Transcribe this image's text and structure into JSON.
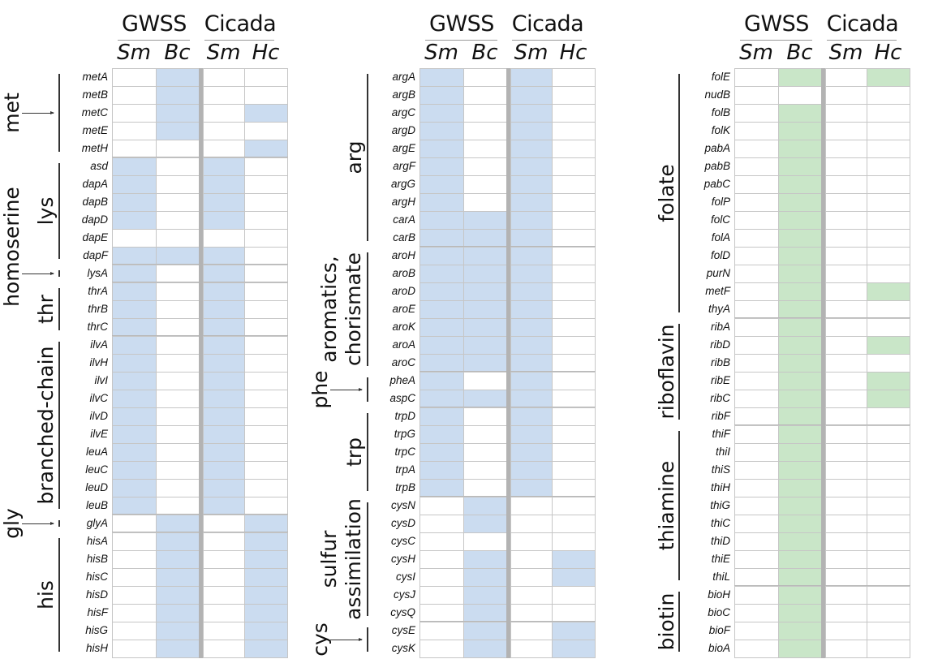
{
  "colors": {
    "blue": "#cbdcf0",
    "green": "#c9e6c8",
    "empty": "#ffffff"
  },
  "headers": {
    "group1": "GWSS",
    "group2": "Cicada",
    "columns": [
      "Sm",
      "Bc",
      "Sm",
      "Hc"
    ]
  },
  "panels": [
    {
      "fill": "blue",
      "groups": [
        {
          "genes": [
            [
              "metA",
              [
                0,
                1,
                0,
                0
              ]
            ],
            [
              "metB",
              [
                0,
                1,
                0,
                0
              ]
            ],
            [
              "metC",
              [
                0,
                1,
                0,
                1
              ]
            ],
            [
              "metE",
              [
                0,
                1,
                0,
                0
              ]
            ],
            [
              "metH",
              [
                0,
                0,
                0,
                1
              ]
            ]
          ]
        },
        {
          "genes": [
            [
              "asd",
              [
                1,
                0,
                1,
                0
              ]
            ],
            [
              "dapA",
              [
                1,
                0,
                1,
                0
              ]
            ],
            [
              "dapB",
              [
                1,
                0,
                1,
                0
              ]
            ],
            [
              "dapD",
              [
                1,
                0,
                1,
                0
              ]
            ],
            [
              "dapE",
              [
                0,
                0,
                0,
                0
              ]
            ],
            [
              "dapF",
              [
                1,
                1,
                1,
                0
              ]
            ]
          ]
        },
        {
          "genes": [
            [
              "lysA",
              [
                1,
                0,
                1,
                0
              ]
            ]
          ]
        },
        {
          "genes": [
            [
              "thrA",
              [
                1,
                0,
                1,
                0
              ]
            ],
            [
              "thrB",
              [
                1,
                0,
                1,
                0
              ]
            ],
            [
              "thrC",
              [
                1,
                0,
                1,
                0
              ]
            ]
          ]
        },
        {
          "genes": [
            [
              "ilvA",
              [
                1,
                0,
                1,
                0
              ]
            ],
            [
              "ilvH",
              [
                1,
                0,
                1,
                0
              ]
            ],
            [
              "ilvI",
              [
                1,
                0,
                1,
                0
              ]
            ],
            [
              "ilvC",
              [
                1,
                0,
                1,
                0
              ]
            ],
            [
              "ilvD",
              [
                1,
                0,
                1,
                0
              ]
            ],
            [
              "ilvE",
              [
                1,
                0,
                1,
                0
              ]
            ],
            [
              "leuA",
              [
                1,
                0,
                1,
                0
              ]
            ],
            [
              "leuC",
              [
                1,
                0,
                1,
                0
              ]
            ],
            [
              "leuD",
              [
                1,
                0,
                1,
                0
              ]
            ],
            [
              "leuB",
              [
                1,
                0,
                1,
                0
              ]
            ]
          ]
        },
        {
          "genes": [
            [
              "glyA",
              [
                0,
                1,
                0,
                1
              ]
            ]
          ]
        },
        {
          "genes": [
            [
              "hisA",
              [
                0,
                1,
                0,
                1
              ]
            ],
            [
              "hisB",
              [
                0,
                1,
                0,
                1
              ]
            ],
            [
              "hisC",
              [
                0,
                1,
                0,
                1
              ]
            ],
            [
              "hisD",
              [
                0,
                1,
                0,
                1
              ]
            ],
            [
              "hisF",
              [
                0,
                1,
                0,
                1
              ]
            ],
            [
              "hisG",
              [
                0,
                1,
                0,
                1
              ]
            ],
            [
              "hisH",
              [
                0,
                1,
                0,
                1
              ]
            ]
          ]
        }
      ],
      "labels": [
        "met",
        "homoserine",
        "lys",
        "thr",
        "branched-chain",
        "gly",
        "his"
      ]
    },
    {
      "fill": "blue",
      "groups": [
        {
          "genes": [
            [
              "argA",
              [
                1,
                0,
                1,
                0
              ]
            ],
            [
              "argB",
              [
                1,
                0,
                1,
                0
              ]
            ],
            [
              "argC",
              [
                1,
                0,
                1,
                0
              ]
            ],
            [
              "argD",
              [
                1,
                0,
                1,
                0
              ]
            ],
            [
              "argE",
              [
                1,
                0,
                1,
                0
              ]
            ],
            [
              "argF",
              [
                1,
                0,
                1,
                0
              ]
            ],
            [
              "argG",
              [
                1,
                0,
                1,
                0
              ]
            ],
            [
              "argH",
              [
                1,
                0,
                1,
                0
              ]
            ],
            [
              "carA",
              [
                1,
                1,
                1,
                0
              ]
            ],
            [
              "carB",
              [
                1,
                1,
                1,
                0
              ]
            ]
          ]
        },
        {
          "genes": [
            [
              "aroH",
              [
                1,
                1,
                1,
                0
              ]
            ],
            [
              "aroB",
              [
                1,
                1,
                1,
                0
              ]
            ],
            [
              "aroD",
              [
                1,
                1,
                1,
                0
              ]
            ],
            [
              "aroE",
              [
                1,
                1,
                1,
                0
              ]
            ],
            [
              "aroK",
              [
                1,
                1,
                1,
                0
              ]
            ],
            [
              "aroA",
              [
                1,
                1,
                1,
                0
              ]
            ],
            [
              "aroC",
              [
                1,
                1,
                1,
                0
              ]
            ]
          ]
        },
        {
          "genes": [
            [
              "pheA",
              [
                1,
                0,
                1,
                0
              ]
            ],
            [
              "aspC",
              [
                1,
                1,
                1,
                0
              ]
            ]
          ]
        },
        {
          "genes": [
            [
              "trpD",
              [
                1,
                0,
                1,
                0
              ]
            ],
            [
              "trpG",
              [
                1,
                0,
                1,
                0
              ]
            ],
            [
              "trpC",
              [
                1,
                0,
                1,
                0
              ]
            ],
            [
              "trpA",
              [
                1,
                0,
                1,
                0
              ]
            ],
            [
              "trpB",
              [
                1,
                0,
                1,
                0
              ]
            ]
          ]
        },
        {
          "genes": [
            [
              "cysN",
              [
                0,
                1,
                0,
                0
              ]
            ],
            [
              "cysD",
              [
                0,
                1,
                0,
                0
              ]
            ],
            [
              "cysC",
              [
                0,
                0,
                0,
                0
              ]
            ],
            [
              "cysH",
              [
                0,
                1,
                0,
                1
              ]
            ],
            [
              "cysI",
              [
                0,
                1,
                0,
                1
              ]
            ],
            [
              "cysJ",
              [
                0,
                1,
                0,
                0
              ]
            ],
            [
              "cysQ",
              [
                0,
                1,
                0,
                0
              ]
            ]
          ]
        },
        {
          "genes": [
            [
              "cysE",
              [
                0,
                1,
                0,
                1
              ]
            ],
            [
              "cysK",
              [
                0,
                1,
                0,
                1
              ]
            ]
          ]
        }
      ],
      "labels": [
        "arg",
        "aromatics,\nchorismate",
        "phe",
        "trp",
        "sulfur\nassimilation",
        "cys"
      ]
    },
    {
      "fill": "green",
      "groups": [
        {
          "genes": [
            [
              "folE",
              [
                0,
                1,
                0,
                1
              ]
            ],
            [
              "nudB",
              [
                0,
                0,
                0,
                0
              ]
            ],
            [
              "folB",
              [
                0,
                1,
                0,
                0
              ]
            ],
            [
              "folK",
              [
                0,
                1,
                0,
                0
              ]
            ],
            [
              "pabA",
              [
                0,
                1,
                0,
                0
              ]
            ],
            [
              "pabB",
              [
                0,
                1,
                0,
                0
              ]
            ],
            [
              "pabC",
              [
                0,
                1,
                0,
                0
              ]
            ],
            [
              "folP",
              [
                0,
                1,
                0,
                0
              ]
            ],
            [
              "folC",
              [
                0,
                1,
                0,
                0
              ]
            ],
            [
              "folA",
              [
                0,
                1,
                0,
                0
              ]
            ],
            [
              "folD",
              [
                0,
                1,
                0,
                0
              ]
            ],
            [
              "purN",
              [
                0,
                1,
                0,
                0
              ]
            ],
            [
              "metF",
              [
                0,
                1,
                0,
                1
              ]
            ],
            [
              "thyA",
              [
                0,
                1,
                0,
                0
              ]
            ]
          ]
        },
        {
          "genes": [
            [
              "ribA",
              [
                0,
                1,
                0,
                0
              ]
            ],
            [
              "ribD",
              [
                0,
                1,
                0,
                1
              ]
            ],
            [
              "ribB",
              [
                0,
                1,
                0,
                0
              ]
            ],
            [
              "ribE",
              [
                0,
                1,
                0,
                1
              ]
            ],
            [
              "ribC",
              [
                0,
                1,
                0,
                1
              ]
            ],
            [
              "ribF",
              [
                0,
                1,
                0,
                0
              ]
            ]
          ]
        },
        {
          "genes": [
            [
              "thiF",
              [
                0,
                1,
                0,
                0
              ]
            ],
            [
              "thiI",
              [
                0,
                1,
                0,
                0
              ]
            ],
            [
              "thiS",
              [
                0,
                1,
                0,
                0
              ]
            ],
            [
              "thiH",
              [
                0,
                1,
                0,
                0
              ]
            ],
            [
              "thiG",
              [
                0,
                1,
                0,
                0
              ]
            ],
            [
              "thiC",
              [
                0,
                1,
                0,
                0
              ]
            ],
            [
              "thiD",
              [
                0,
                1,
                0,
                0
              ]
            ],
            [
              "thiE",
              [
                0,
                1,
                0,
                0
              ]
            ],
            [
              "thiL",
              [
                0,
                1,
                0,
                0
              ]
            ]
          ]
        },
        {
          "genes": [
            [
              "bioH",
              [
                0,
                1,
                0,
                0
              ]
            ],
            [
              "bioC",
              [
                0,
                1,
                0,
                0
              ]
            ],
            [
              "bioF",
              [
                0,
                1,
                0,
                0
              ]
            ],
            [
              "bioA",
              [
                0,
                1,
                0,
                0
              ]
            ]
          ]
        }
      ],
      "labels": [
        "folate",
        "riboflavin",
        "thiamine",
        "biotin"
      ]
    }
  ]
}
